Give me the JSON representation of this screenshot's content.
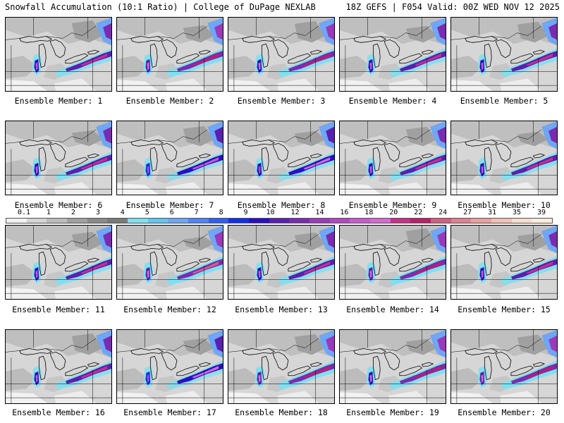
{
  "header": {
    "title_left": "Snowfall Accumulation (10:1 Ratio) | College of DuPage NEXLAB",
    "title_right": "18Z GEFS | F054 Valid: 00Z WED NOV 12 2025"
  },
  "panels": [
    {
      "label": "Ensemble Member: 1",
      "intensity": 1.0
    },
    {
      "label": "Ensemble Member: 2",
      "intensity": 1.3
    },
    {
      "label": "Ensemble Member: 3",
      "intensity": 1.2
    },
    {
      "label": "Ensemble Member: 4",
      "intensity": 0.9
    },
    {
      "label": "Ensemble Member: 5",
      "intensity": 0.9
    },
    {
      "label": "Ensemble Member: 6",
      "intensity": 1.1
    },
    {
      "label": "Ensemble Member: 7",
      "intensity": 0.6
    },
    {
      "label": "Ensemble Member: 8",
      "intensity": 0.8
    },
    {
      "label": "Ensemble Member: 9",
      "intensity": 1.0
    },
    {
      "label": "Ensemble Member: 10",
      "intensity": 1.0
    },
    {
      "label": "Ensemble Member: 11",
      "intensity": 1.1
    },
    {
      "label": "Ensemble Member: 12",
      "intensity": 1.4
    },
    {
      "label": "Ensemble Member: 13",
      "intensity": 1.0
    },
    {
      "label": "Ensemble Member: 14",
      "intensity": 1.3
    },
    {
      "label": "Ensemble Member: 15",
      "intensity": 1.0
    },
    {
      "label": "Ensemble Member: 16",
      "intensity": 1.0
    },
    {
      "label": "Ensemble Member: 17",
      "intensity": 0.7
    },
    {
      "label": "Ensemble Member: 18",
      "intensity": 1.3
    },
    {
      "label": "Ensemble Member: 19",
      "intensity": 1.2
    },
    {
      "label": "Ensemble Member: 20",
      "intensity": 1.3
    }
  ],
  "colorbar": {
    "labels": [
      "0.1",
      "1",
      "2",
      "3",
      "4",
      "5",
      "6",
      "7",
      "8",
      "9",
      "10",
      "12",
      "14",
      "16",
      "18",
      "20",
      "22",
      "24",
      "27",
      "31",
      "35",
      "39"
    ],
    "colors": [
      "#f0f0f0",
      "#d4d4d4",
      "#bcbcbc",
      "#a0a0a0",
      "#8a8a8a",
      "#7a7a7a",
      "#7fe0f0",
      "#5fc6f0",
      "#6fa6f5",
      "#4f84f5",
      "#2f5ef0",
      "#1230e8",
      "#2a10c0",
      "#5a20b0",
      "#7a2cb0",
      "#9a3ab8",
      "#b048c0",
      "#c85acc",
      "#d66ad0",
      "#c8308a",
      "#b8206a",
      "#d06080",
      "#e08090",
      "#eaa0a0",
      "#f0c0b0",
      "#f8dccc",
      "#fcecdc"
    ],
    "endcap_colors": []
  }
}
